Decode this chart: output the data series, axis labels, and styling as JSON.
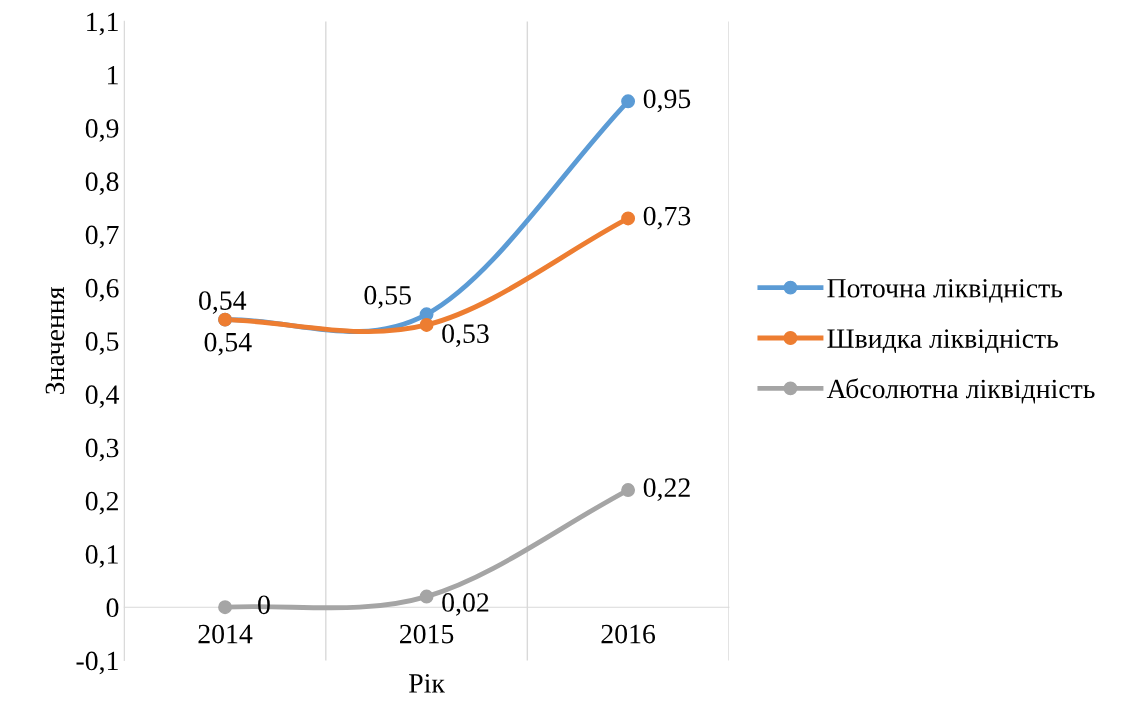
{
  "chart_data": {
    "type": "line",
    "xlabel": "Рік",
    "ylabel": "Значення",
    "categories": [
      "2014",
      "2015",
      "2016"
    ],
    "series": [
      {
        "name": "Поточна ліквідність",
        "color": "#5b9bd5",
        "values": [
          0.54,
          0.55,
          0.95
        ],
        "value_labels": [
          "0,54",
          "0,55",
          "0,95"
        ]
      },
      {
        "name": "Швидка ліквідність",
        "color": "#ed7d31",
        "values": [
          0.54,
          0.53,
          0.73
        ],
        "value_labels": [
          "0,54",
          "0,53",
          "0,73"
        ]
      },
      {
        "name": "Абсолютна ліквідність",
        "color": "#a5a5a5",
        "values": [
          0,
          0.02,
          0.22
        ],
        "value_labels": [
          "0",
          "0,02",
          "0,22"
        ]
      }
    ],
    "ylim": [
      -0.1,
      1.1
    ],
    "yticks": [
      {
        "value": -0.1,
        "label": "-0,1"
      },
      0,
      {
        "value": 0.1,
        "label": "0,1"
      },
      {
        "value": 0.2,
        "label": "0,2"
      },
      {
        "value": 0.3,
        "label": "0,3"
      },
      {
        "value": 0.4,
        "label": "0,4"
      },
      {
        "value": 0.5,
        "label": "0,5"
      },
      {
        "value": 0.6,
        "label": "0,6"
      },
      {
        "value": 0.7,
        "label": "0,7"
      },
      {
        "value": 0.8,
        "label": "0,8"
      },
      {
        "value": 0.9,
        "label": "0,9"
      },
      1,
      {
        "value": 1.1,
        "label": "1,1"
      }
    ],
    "grid": "x",
    "legend": "right",
    "marker": "circle",
    "line_style": "solid"
  }
}
